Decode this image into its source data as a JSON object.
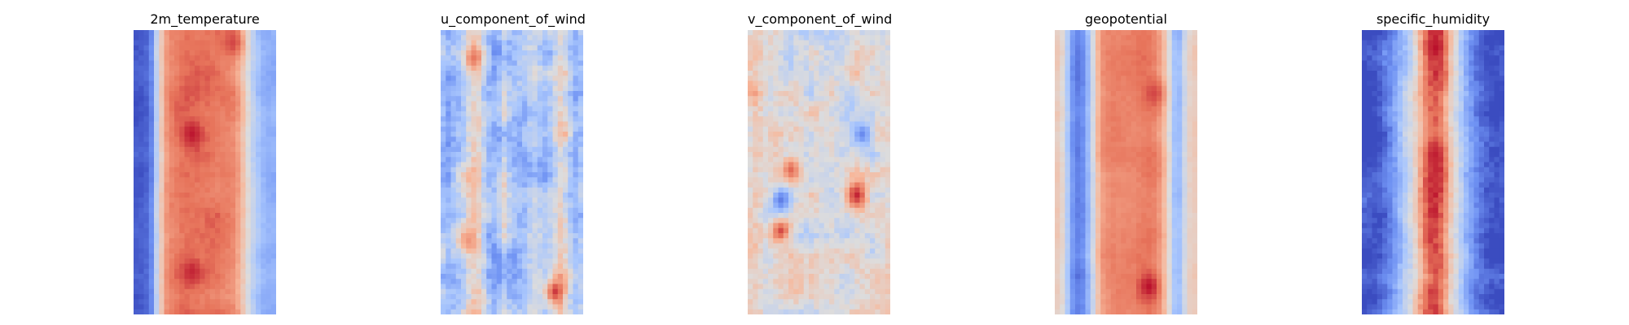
{
  "chart_data": [
    {
      "type": "heatmap",
      "title": "2m_temperature",
      "colormap": "coolwarm",
      "colormap_stops": [
        "#3b4cc0",
        "#6f92f3",
        "#aac7fd",
        "#dddcdc",
        "#f7b89c",
        "#e7745b",
        "#b40426"
      ],
      "grid": false,
      "axes_visible": false,
      "columns": 28,
      "rows": 56,
      "column_profile": [
        0.05,
        0.05,
        0.07,
        0.15,
        0.4,
        0.6,
        0.75,
        0.8,
        0.82,
        0.84,
        0.85,
        0.85,
        0.85,
        0.84,
        0.84,
        0.83,
        0.82,
        0.81,
        0.8,
        0.78,
        0.72,
        0.62,
        0.5,
        0.4,
        0.33,
        0.28,
        0.26,
        0.26
      ],
      "hotspots": [
        {
          "col": 11,
          "row": 20,
          "value": 0.97
        },
        {
          "col": 11,
          "row": 47,
          "value": 0.95
        },
        {
          "col": 19,
          "row": 2,
          "value": 0.9
        }
      ],
      "noise": 0.06,
      "seed": 11
    },
    {
      "type": "heatmap",
      "title": "u_component_of_wind",
      "colormap": "coolwarm",
      "colormap_stops": [
        "#3b4cc0",
        "#6f92f3",
        "#aac7fd",
        "#dddcdc",
        "#f7b89c",
        "#e7745b",
        "#b40426"
      ],
      "grid": false,
      "axes_visible": false,
      "columns": 28,
      "rows": 56,
      "column_profile": [
        0.35,
        0.3,
        0.35,
        0.4,
        0.45,
        0.55,
        0.6,
        0.55,
        0.4,
        0.3,
        0.25,
        0.3,
        0.4,
        0.32,
        0.3,
        0.3,
        0.32,
        0.38,
        0.4,
        0.35,
        0.3,
        0.35,
        0.45,
        0.55,
        0.5,
        0.38,
        0.3,
        0.35
      ],
      "hotspots": [
        {
          "col": 6,
          "row": 5,
          "value": 0.82
        },
        {
          "col": 22,
          "row": 51,
          "value": 0.92
        },
        {
          "col": 5,
          "row": 41,
          "value": 0.75
        }
      ],
      "noise": 0.2,
      "seed": 23
    },
    {
      "type": "heatmap",
      "title": "v_component_of_wind",
      "colormap": "coolwarm",
      "colormap_stops": [
        "#3b4cc0",
        "#6f92f3",
        "#aac7fd",
        "#dddcdc",
        "#f7b89c",
        "#e7745b",
        "#b40426"
      ],
      "grid": false,
      "axes_visible": false,
      "columns": 28,
      "rows": 56,
      "column_profile": [
        0.58,
        0.6,
        0.56,
        0.5,
        0.5,
        0.52,
        0.5,
        0.48,
        0.5,
        0.52,
        0.5,
        0.48,
        0.5,
        0.52,
        0.5,
        0.5,
        0.52,
        0.5,
        0.48,
        0.5,
        0.52,
        0.55,
        0.52,
        0.5,
        0.48,
        0.5,
        0.5,
        0.5
      ],
      "hotspots": [
        {
          "col": 21,
          "row": 32,
          "value": 0.95
        },
        {
          "col": 6,
          "row": 39,
          "value": 0.9
        },
        {
          "col": 8,
          "row": 27,
          "value": 0.85
        },
        {
          "col": 6,
          "row": 33,
          "value": 0.12
        },
        {
          "col": 22,
          "row": 20,
          "value": 0.15
        }
      ],
      "noise": 0.18,
      "seed": 37
    },
    {
      "type": "heatmap",
      "title": "geopotential",
      "colormap": "coolwarm",
      "colormap_stops": [
        "#3b4cc0",
        "#6f92f3",
        "#aac7fd",
        "#dddcdc",
        "#f7b89c",
        "#e7745b",
        "#b40426"
      ],
      "grid": false,
      "axes_visible": false,
      "columns": 28,
      "rows": 56,
      "column_profile": [
        0.58,
        0.52,
        0.35,
        0.18,
        0.12,
        0.15,
        0.28,
        0.45,
        0.65,
        0.75,
        0.78,
        0.8,
        0.8,
        0.8,
        0.8,
        0.8,
        0.81,
        0.82,
        0.82,
        0.8,
        0.75,
        0.65,
        0.5,
        0.32,
        0.3,
        0.45,
        0.55,
        0.58
      ],
      "hotspots": [
        {
          "col": 18,
          "row": 50,
          "value": 0.98
        },
        {
          "col": 19,
          "row": 12,
          "value": 0.9
        }
      ],
      "noise": 0.05,
      "seed": 41
    },
    {
      "type": "heatmap",
      "title": "specific_humidity",
      "colormap": "coolwarm",
      "colormap_stops": [
        "#3b4cc0",
        "#6f92f3",
        "#aac7fd",
        "#dddcdc",
        "#f7b89c",
        "#e7745b",
        "#b40426"
      ],
      "grid": false,
      "axes_visible": false,
      "columns": 28,
      "rows": 56,
      "column_profile": [
        0.02,
        0.02,
        0.03,
        0.05,
        0.1,
        0.15,
        0.22,
        0.3,
        0.38,
        0.45,
        0.55,
        0.68,
        0.8,
        0.88,
        0.9,
        0.86,
        0.75,
        0.6,
        0.5,
        0.4,
        0.3,
        0.22,
        0.15,
        0.1,
        0.05,
        0.03,
        0.02,
        0.02
      ],
      "hotspots": [
        {
          "col": 14,
          "row": 3,
          "value": 0.98
        },
        {
          "col": 14,
          "row": 24,
          "value": 0.96
        }
      ],
      "noise": 0.12,
      "seed": 53
    }
  ]
}
